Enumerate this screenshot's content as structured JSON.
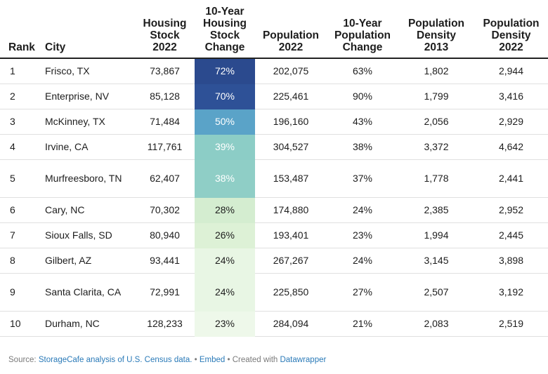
{
  "chart_data": {
    "type": "table",
    "columns": [
      "Rank",
      "City",
      "Housing\nStock\n2022",
      "10-Year\nHousing\nStock\nChange",
      "Population\n2022",
      "10-Year\nPopulation\nChange",
      "Population\nDensity\n2013",
      "Population\nDensity\n2022"
    ],
    "rows": [
      {
        "rank": "1",
        "city": "Frisco, TX",
        "housing_stock": "73,867",
        "housing_change": "72%",
        "change_value": 72,
        "population": "202,075",
        "pop_change": "63%",
        "density_2013": "1,802",
        "density_2022": "2,944"
      },
      {
        "rank": "2",
        "city": "Enterprise, NV",
        "housing_stock": "85,128",
        "housing_change": "70%",
        "change_value": 70,
        "population": "225,461",
        "pop_change": "90%",
        "density_2013": "1,799",
        "density_2022": "3,416"
      },
      {
        "rank": "3",
        "city": "McKinney, TX",
        "housing_stock": "71,484",
        "housing_change": "50%",
        "change_value": 50,
        "population": "196,160",
        "pop_change": "43%",
        "density_2013": "2,056",
        "density_2022": "2,929"
      },
      {
        "rank": "4",
        "city": "Irvine, CA",
        "housing_stock": "117,761",
        "housing_change": "39%",
        "change_value": 39,
        "population": "304,527",
        "pop_change": "38%",
        "density_2013": "3,372",
        "density_2022": "4,642"
      },
      {
        "rank": "5",
        "city": "Murfreesboro, TN",
        "housing_stock": "62,407",
        "housing_change": "38%",
        "change_value": 38,
        "population": "153,487",
        "pop_change": "37%",
        "density_2013": "1,778",
        "density_2022": "2,441"
      },
      {
        "rank": "6",
        "city": "Cary, NC",
        "housing_stock": "70,302",
        "housing_change": "28%",
        "change_value": 28,
        "population": "174,880",
        "pop_change": "24%",
        "density_2013": "2,385",
        "density_2022": "2,952"
      },
      {
        "rank": "7",
        "city": "Sioux Falls, SD",
        "housing_stock": "80,940",
        "housing_change": "26%",
        "change_value": 26,
        "population": "193,401",
        "pop_change": "23%",
        "density_2013": "1,994",
        "density_2022": "2,445"
      },
      {
        "rank": "8",
        "city": "Gilbert, AZ",
        "housing_stock": "93,441",
        "housing_change": "24%",
        "change_value": 24,
        "population": "267,267",
        "pop_change": "24%",
        "density_2013": "3,145",
        "density_2022": "3,898"
      },
      {
        "rank": "9",
        "city": "Santa Clarita, CA",
        "housing_stock": "72,991",
        "housing_change": "24%",
        "change_value": 24,
        "population": "225,850",
        "pop_change": "27%",
        "density_2013": "2,507",
        "density_2022": "3,192"
      },
      {
        "rank": "10",
        "city": "Durham, NC",
        "housing_stock": "128,233",
        "housing_change": "23%",
        "change_value": 23,
        "population": "284,094",
        "pop_change": "21%",
        "density_2013": "2,083",
        "density_2022": "2,519"
      }
    ],
    "heat_colors": {
      "72%": "#2b4a8e",
      "70%": "#2e5197",
      "50%": "#5aa3c8",
      "39%": "#8ccdc6",
      "38%": "#8fcec6",
      "28%": "#d4edd0",
      "26%": "#ddf1d6",
      "24%": "#e8f6e4",
      "23%": "#eef8ea"
    }
  },
  "footer": {
    "source_label": "Source: ",
    "source_link": "StorageCafe analysis of U.S. Census data.",
    "sep1": " • ",
    "embed": "Embed",
    "sep2": " • Created with ",
    "dw": "Datawrapper"
  }
}
